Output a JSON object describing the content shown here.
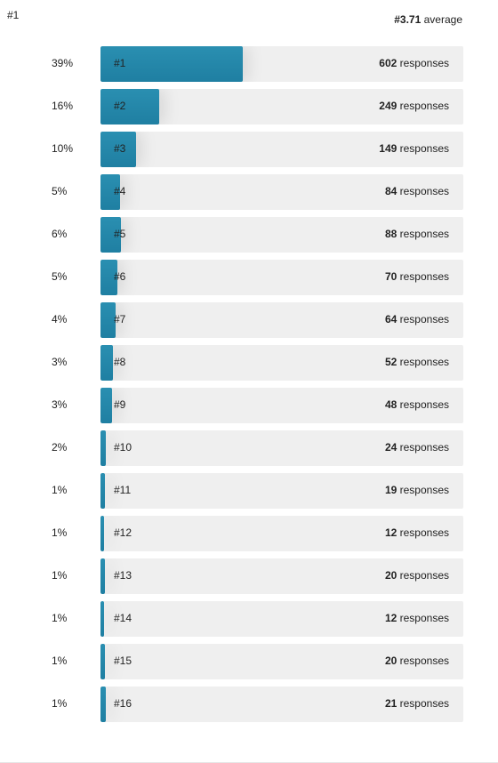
{
  "corner_label": "#1",
  "average": {
    "value": "#3.71",
    "label": "average"
  },
  "chart_data": {
    "type": "bar",
    "orientation": "horizontal",
    "categories": [
      "#1",
      "#2",
      "#3",
      "#4",
      "#5",
      "#6",
      "#7",
      "#8",
      "#9",
      "#10",
      "#11",
      "#12",
      "#13",
      "#14",
      "#15",
      "#16"
    ],
    "percent_labels": [
      "39%",
      "16%",
      "10%",
      "5%",
      "6%",
      "5%",
      "4%",
      "3%",
      "3%",
      "2%",
      "1%",
      "1%",
      "1%",
      "1%",
      "1%",
      "1%"
    ],
    "values": [
      602,
      249,
      149,
      84,
      88,
      70,
      64,
      52,
      48,
      24,
      19,
      12,
      20,
      12,
      20,
      21
    ],
    "count_suffix": "responses",
    "colors": {
      "bar": "#2489ac",
      "track": "#efefef"
    }
  }
}
